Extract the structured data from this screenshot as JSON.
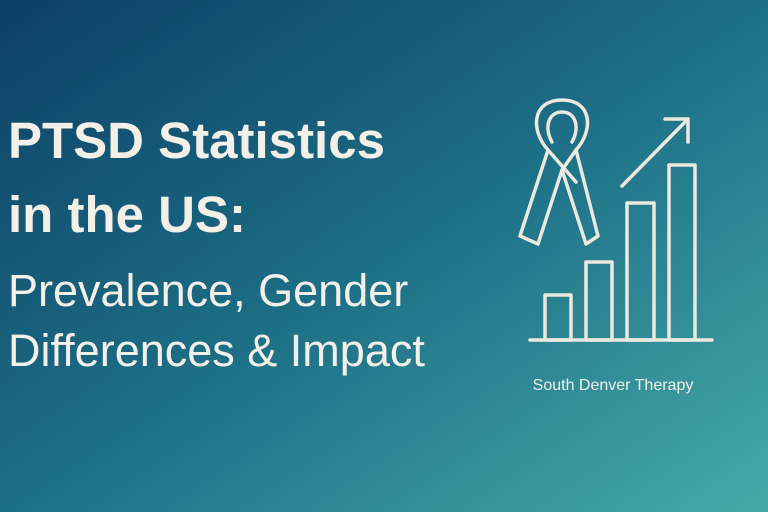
{
  "title": {
    "lines": [
      "PTSD Statistics",
      "in the US:"
    ]
  },
  "subtitle": {
    "lines": [
      "Prevalence, Gender",
      "Differences & Impact"
    ]
  },
  "brand": "South Denver Therapy"
}
